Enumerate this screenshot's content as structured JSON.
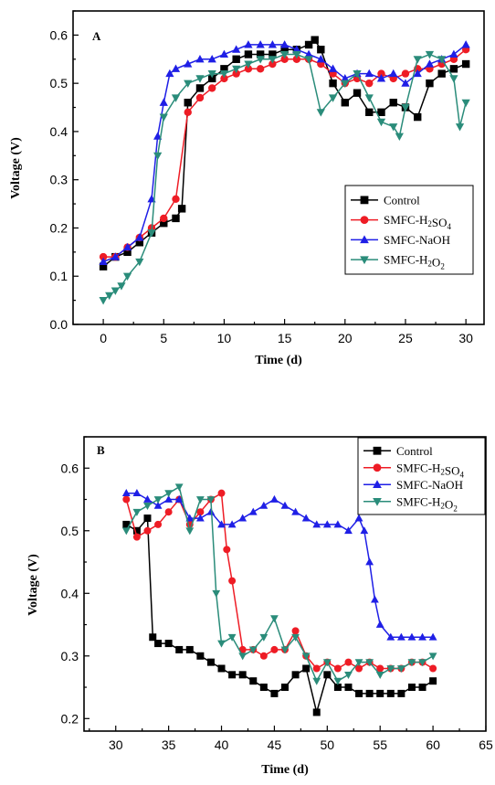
{
  "colors": {
    "control": "#000000",
    "h2so4": "#ee1c25",
    "naoh": "#1f1fe6",
    "h2o2": "#2a8c7a"
  },
  "legend": [
    {
      "key": "control",
      "text": "Control",
      "marker": "square"
    },
    {
      "key": "h2so4",
      "text": "SMFC-H2SO4",
      "marker": "circle",
      "sub": [
        "2",
        "4"
      ]
    },
    {
      "key": "naoh",
      "text": "SMFC-NaOH",
      "marker": "triangle-up"
    },
    {
      "key": "h2o2",
      "text": "SMFC-H2O2",
      "marker": "triangle-down",
      "sub": [
        "2",
        "2"
      ]
    }
  ],
  "chart_data": [
    {
      "type": "line",
      "panel": "A",
      "xlabel": "Time (d)",
      "ylabel": "Voltage (V)",
      "xlim": [
        -2.5,
        31.5
      ],
      "ylim": [
        0.0,
        0.65
      ],
      "xticks": [
        0,
        5,
        10,
        15,
        20,
        25,
        30
      ],
      "yticks": [
        0.0,
        0.1,
        0.2,
        0.3,
        0.4,
        0.5,
        0.6
      ],
      "legend_position": "lower-right",
      "series": [
        {
          "key": "control",
          "name": "Control",
          "x": [
            0,
            1,
            2,
            3,
            4,
            5,
            6,
            6.5,
            7,
            8,
            9,
            10,
            11,
            12,
            13,
            14,
            15,
            16,
            17,
            17.5,
            18,
            19,
            20,
            21,
            22,
            23,
            24,
            25,
            26,
            27,
            28,
            29,
            30
          ],
          "y": [
            0.12,
            0.14,
            0.15,
            0.17,
            0.19,
            0.21,
            0.22,
            0.24,
            0.46,
            0.49,
            0.51,
            0.53,
            0.55,
            0.56,
            0.56,
            0.56,
            0.57,
            0.57,
            0.58,
            0.59,
            0.57,
            0.5,
            0.46,
            0.48,
            0.44,
            0.44,
            0.46,
            0.45,
            0.43,
            0.5,
            0.52,
            0.53,
            0.54
          ]
        },
        {
          "key": "h2so4",
          "name": "SMFC-H2SO4",
          "x": [
            0,
            1,
            2,
            3,
            4,
            5,
            6,
            7,
            8,
            9,
            10,
            11,
            12,
            13,
            14,
            15,
            16,
            17,
            18,
            19,
            20,
            21,
            22,
            23,
            24,
            25,
            26,
            27,
            28,
            29,
            30
          ],
          "y": [
            0.14,
            0.14,
            0.16,
            0.18,
            0.2,
            0.22,
            0.26,
            0.44,
            0.47,
            0.49,
            0.51,
            0.52,
            0.53,
            0.53,
            0.54,
            0.55,
            0.55,
            0.55,
            0.54,
            0.52,
            0.5,
            0.51,
            0.5,
            0.52,
            0.51,
            0.52,
            0.53,
            0.53,
            0.54,
            0.55,
            0.57
          ]
        },
        {
          "key": "naoh",
          "name": "SMFC-NaOH",
          "x": [
            0,
            1,
            2,
            3,
            4,
            4.5,
            5,
            5.5,
            6,
            7,
            8,
            9,
            10,
            11,
            12,
            13,
            14,
            15,
            16,
            17,
            18,
            19,
            20,
            21,
            22,
            23,
            24,
            25,
            26,
            27,
            28,
            29,
            30
          ],
          "y": [
            0.13,
            0.14,
            0.16,
            0.18,
            0.26,
            0.39,
            0.46,
            0.52,
            0.53,
            0.54,
            0.55,
            0.55,
            0.56,
            0.57,
            0.58,
            0.58,
            0.58,
            0.58,
            0.57,
            0.56,
            0.55,
            0.53,
            0.51,
            0.52,
            0.52,
            0.51,
            0.52,
            0.5,
            0.52,
            0.54,
            0.55,
            0.56,
            0.58
          ]
        },
        {
          "key": "h2o2",
          "name": "SMFC-H2O2",
          "x": [
            0,
            0.5,
            1,
            1.5,
            2,
            3,
            4,
            4.5,
            5,
            6,
            7,
            8,
            9,
            10,
            11,
            12,
            13,
            14,
            15,
            16,
            17,
            18,
            19,
            20,
            21,
            22,
            23,
            24,
            24.5,
            25,
            26,
            27,
            28,
            29,
            29.5,
            30
          ],
          "y": [
            0.05,
            0.06,
            0.07,
            0.08,
            0.1,
            0.13,
            0.19,
            0.35,
            0.43,
            0.47,
            0.5,
            0.51,
            0.52,
            0.52,
            0.53,
            0.54,
            0.55,
            0.55,
            0.56,
            0.56,
            0.55,
            0.44,
            0.47,
            0.5,
            0.52,
            0.47,
            0.42,
            0.41,
            0.39,
            0.45,
            0.55,
            0.56,
            0.55,
            0.51,
            0.41,
            0.46
          ]
        }
      ]
    },
    {
      "type": "line",
      "panel": "B",
      "xlabel": "Time (d)",
      "ylabel": "Voltage (V)",
      "xlim": [
        27,
        65
      ],
      "ylim": [
        0.18,
        0.65
      ],
      "xticks": [
        30,
        35,
        40,
        45,
        50,
        55,
        60,
        65
      ],
      "yticks": [
        0.2,
        0.3,
        0.4,
        0.5,
        0.6
      ],
      "legend_position": "top-right",
      "series": [
        {
          "key": "control",
          "name": "Control",
          "x": [
            31,
            32,
            33,
            33.5,
            34,
            35,
            36,
            37,
            38,
            39,
            40,
            41,
            42,
            43,
            44,
            45,
            46,
            47,
            48,
            49,
            50,
            51,
            52,
            53,
            54,
            55,
            56,
            57,
            58,
            59,
            60
          ],
          "y": [
            0.51,
            0.5,
            0.52,
            0.33,
            0.32,
            0.32,
            0.31,
            0.31,
            0.3,
            0.29,
            0.28,
            0.27,
            0.27,
            0.26,
            0.25,
            0.24,
            0.25,
            0.27,
            0.28,
            0.21,
            0.27,
            0.25,
            0.25,
            0.24,
            0.24,
            0.24,
            0.24,
            0.24,
            0.25,
            0.25,
            0.26
          ]
        },
        {
          "key": "h2so4",
          "name": "SMFC-H2SO4",
          "x": [
            31,
            32,
            33,
            34,
            35,
            36,
            37,
            38,
            39,
            40,
            40.5,
            41,
            42,
            43,
            44,
            45,
            46,
            47,
            48,
            49,
            50,
            51,
            52,
            53,
            54,
            55,
            56,
            57,
            58,
            59,
            60
          ],
          "y": [
            0.55,
            0.49,
            0.5,
            0.51,
            0.53,
            0.55,
            0.51,
            0.53,
            0.55,
            0.56,
            0.47,
            0.42,
            0.31,
            0.31,
            0.3,
            0.31,
            0.31,
            0.34,
            0.3,
            0.28,
            0.29,
            0.28,
            0.29,
            0.28,
            0.29,
            0.28,
            0.28,
            0.28,
            0.29,
            0.29,
            0.28
          ]
        },
        {
          "key": "naoh",
          "name": "SMFC-NaOH",
          "x": [
            31,
            32,
            33,
            34,
            35,
            36,
            37,
            38,
            39,
            40,
            41,
            42,
            43,
            44,
            45,
            46,
            47,
            48,
            49,
            50,
            51,
            52,
            53,
            53.5,
            54,
            54.5,
            55,
            56,
            57,
            58,
            59,
            60
          ],
          "y": [
            0.56,
            0.56,
            0.55,
            0.54,
            0.55,
            0.55,
            0.52,
            0.52,
            0.53,
            0.51,
            0.51,
            0.52,
            0.53,
            0.54,
            0.55,
            0.54,
            0.53,
            0.52,
            0.51,
            0.51,
            0.51,
            0.5,
            0.52,
            0.5,
            0.45,
            0.39,
            0.35,
            0.33,
            0.33,
            0.33,
            0.33,
            0.33
          ]
        },
        {
          "key": "h2o2",
          "name": "SMFC-H2O2",
          "x": [
            31,
            32,
            33,
            34,
            35,
            36,
            37,
            38,
            39,
            39.5,
            40,
            41,
            42,
            43,
            44,
            45,
            46,
            47,
            48,
            49,
            50,
            51,
            52,
            53,
            54,
            55,
            56,
            57,
            58,
            59,
            60
          ],
          "y": [
            0.5,
            0.53,
            0.54,
            0.55,
            0.56,
            0.57,
            0.5,
            0.55,
            0.55,
            0.4,
            0.32,
            0.33,
            0.3,
            0.31,
            0.33,
            0.36,
            0.31,
            0.33,
            0.3,
            0.26,
            0.29,
            0.26,
            0.27,
            0.29,
            0.29,
            0.27,
            0.28,
            0.28,
            0.29,
            0.29,
            0.3
          ]
        }
      ]
    }
  ]
}
